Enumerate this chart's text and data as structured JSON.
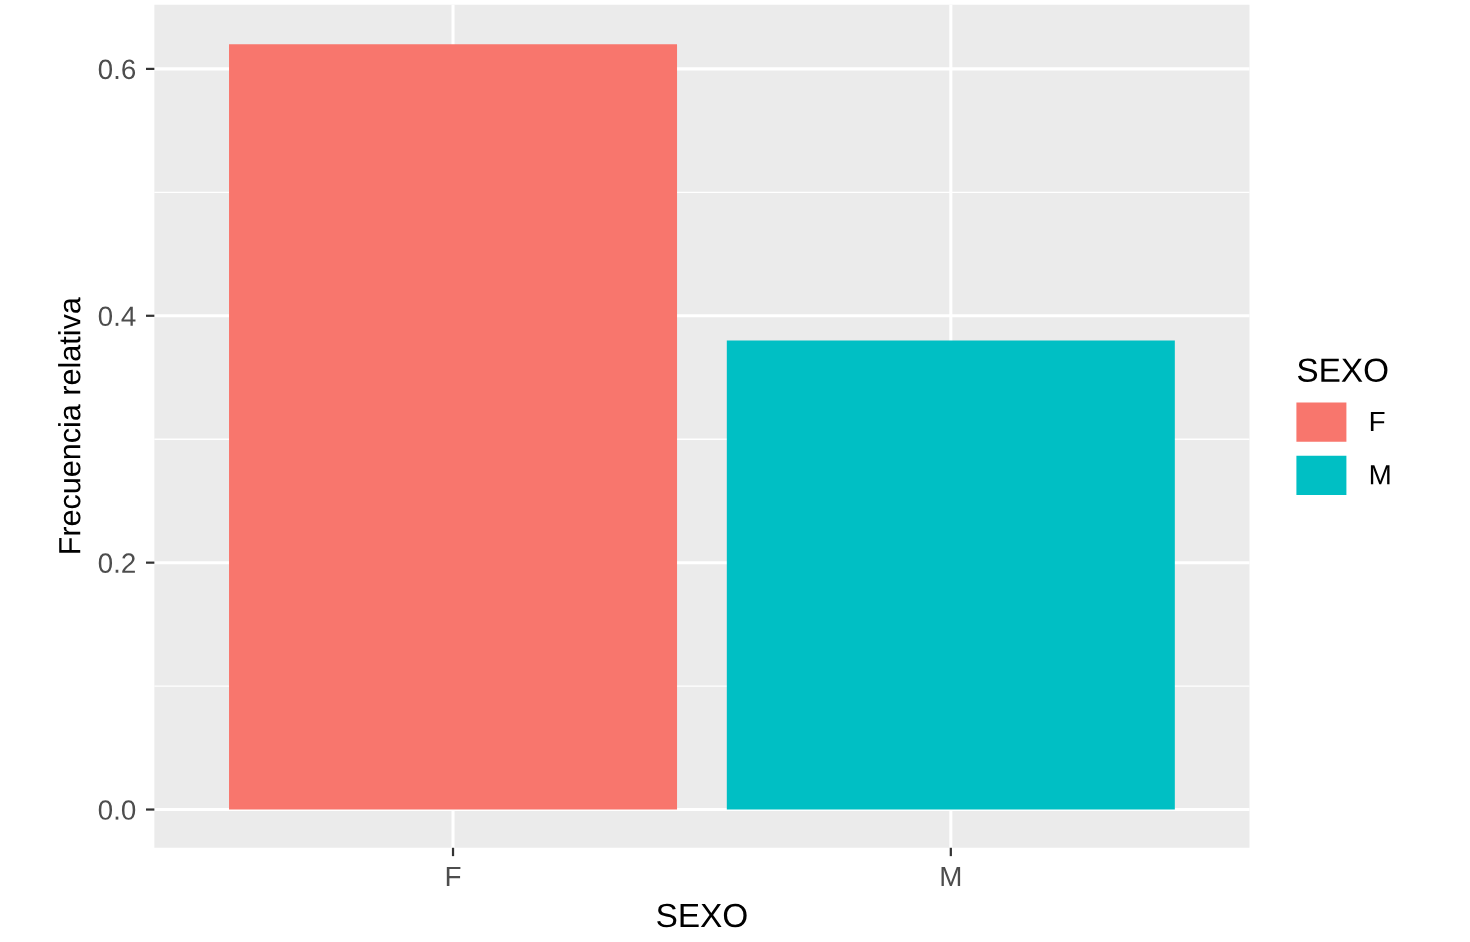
{
  "chart_data": {
    "type": "bar",
    "xlabel": "SEXO",
    "ylabel": "Frecuencia relativa",
    "legend_title": "SEXO",
    "categories": [
      "F",
      "M"
    ],
    "series": [
      {
        "name": "F",
        "color": "#f8766d",
        "values": [
          0.62,
          null
        ]
      },
      {
        "name": "M",
        "color": "#00bfc4",
        "values": [
          null,
          0.38
        ]
      }
    ],
    "ylim": [
      -0.031,
      0.652
    ],
    "yticks": [
      {
        "value": 0,
        "label": "0.0"
      },
      0.2,
      0.4,
      0.6
    ],
    "grid": true,
    "legend": "right"
  }
}
